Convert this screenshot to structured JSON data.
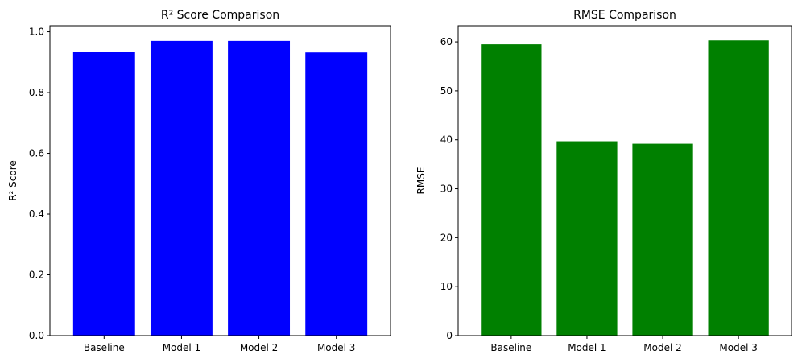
{
  "chart_data": [
    {
      "type": "bar",
      "title": "R² Score Comparison",
      "xlabel": "",
      "ylabel": "R² Score",
      "categories": [
        "Baseline",
        "Model 1",
        "Model 2",
        "Model 3"
      ],
      "values": [
        0.933,
        0.97,
        0.97,
        0.932
      ],
      "ylim": [
        0,
        1.02
      ],
      "yticks": [
        0.0,
        0.2,
        0.4,
        0.6,
        0.8,
        1.0
      ],
      "ytick_labels": [
        "0.0",
        "0.2",
        "0.4",
        "0.6",
        "0.8",
        "1.0"
      ],
      "color": "#0000ff",
      "grid": false
    },
    {
      "type": "bar",
      "title": "RMSE Comparison",
      "xlabel": "",
      "ylabel": "RMSE",
      "categories": [
        "Baseline",
        "Model 1",
        "Model 2",
        "Model 3"
      ],
      "values": [
        59.5,
        39.7,
        39.2,
        60.3
      ],
      "ylim": [
        0,
        63.3
      ],
      "yticks": [
        0,
        10,
        20,
        30,
        40,
        50,
        60
      ],
      "ytick_labels": [
        "0",
        "10",
        "20",
        "30",
        "40",
        "50",
        "60"
      ],
      "color": "#008000",
      "grid": false
    }
  ]
}
